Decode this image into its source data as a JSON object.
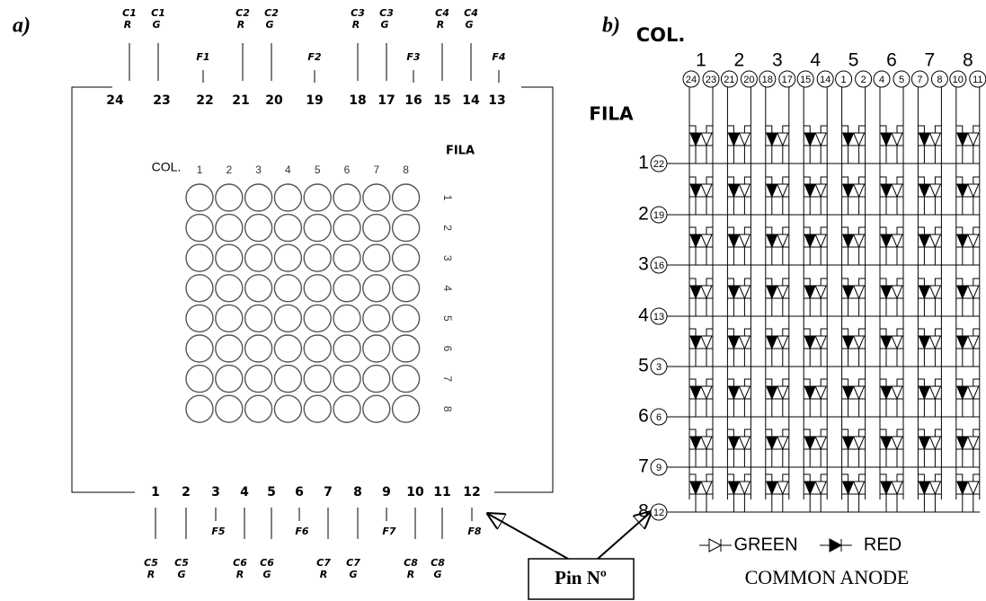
{
  "panel_a": {
    "label": "a)",
    "top_pins": [
      {
        "pin": "24",
        "signal": "C1",
        "color": "R"
      },
      {
        "pin": "23",
        "signal": "C1",
        "color": "G"
      },
      {
        "pin": "22",
        "signal": "F1"
      },
      {
        "pin": "21",
        "signal": "C2",
        "color": "R"
      },
      {
        "pin": "20",
        "signal": "C2",
        "color": "G"
      },
      {
        "pin": "19",
        "signal": "F2"
      },
      {
        "pin": "18",
        "signal": "C3",
        "color": "R"
      },
      {
        "pin": "17",
        "signal": "C3",
        "color": "G"
      },
      {
        "pin": "16",
        "signal": "F3"
      },
      {
        "pin": "15",
        "signal": "C4",
        "color": "R"
      },
      {
        "pin": "14",
        "signal": "C4",
        "color": "G"
      },
      {
        "pin": "13",
        "signal": "F4"
      }
    ],
    "bottom_pins": [
      {
        "pin": "1",
        "signal": "C5",
        "color": "R"
      },
      {
        "pin": "2",
        "signal": "C5",
        "color": "G"
      },
      {
        "pin": "3",
        "signal": "F5"
      },
      {
        "pin": "4",
        "signal": "C6",
        "color": "R"
      },
      {
        "pin": "5",
        "signal": "C6",
        "color": "G"
      },
      {
        "pin": "6",
        "signal": "F6"
      },
      {
        "pin": "7",
        "signal": "C7",
        "color": "R"
      },
      {
        "pin": "8",
        "signal": "C7",
        "color": "G"
      },
      {
        "pin": "9",
        "signal": "F7"
      },
      {
        "pin": "10",
        "signal": "C8",
        "color": "R"
      },
      {
        "pin": "11",
        "signal": "C8",
        "color": "G"
      },
      {
        "pin": "12",
        "signal": "F8"
      }
    ],
    "col_label": "COL.",
    "columns": [
      "1",
      "2",
      "3",
      "4",
      "5",
      "6",
      "7",
      "8"
    ],
    "fila_label": "FILA",
    "rows": [
      "1",
      "2",
      "3",
      "4",
      "5",
      "6",
      "7",
      "8"
    ]
  },
  "panel_b": {
    "label": "b)",
    "col_label": "COL.",
    "fila_label": "FILA",
    "columns": [
      {
        "num": "1",
        "pins": [
          "24",
          "23"
        ]
      },
      {
        "num": "2",
        "pins": [
          "21",
          "20"
        ]
      },
      {
        "num": "3",
        "pins": [
          "18",
          "17"
        ]
      },
      {
        "num": "4",
        "pins": [
          "15",
          "14"
        ]
      },
      {
        "num": "5",
        "pins": [
          "1",
          "2"
        ]
      },
      {
        "num": "6",
        "pins": [
          "4",
          "5"
        ]
      },
      {
        "num": "7",
        "pins": [
          "7",
          "8"
        ]
      },
      {
        "num": "8",
        "pins": [
          "10",
          "11"
        ]
      }
    ],
    "rows": [
      {
        "num": "1",
        "pin": "22"
      },
      {
        "num": "2",
        "pin": "19"
      },
      {
        "num": "3",
        "pin": "16"
      },
      {
        "num": "4",
        "pin": "13"
      },
      {
        "num": "5",
        "pin": "3"
      },
      {
        "num": "6",
        "pin": "6"
      },
      {
        "num": "7",
        "pin": "9"
      },
      {
        "num": "8",
        "pin": "12"
      }
    ],
    "legend": {
      "green": "GREEN",
      "red": "RED"
    },
    "footer": "COMMON ANODE"
  },
  "callout": "Pin Nº"
}
